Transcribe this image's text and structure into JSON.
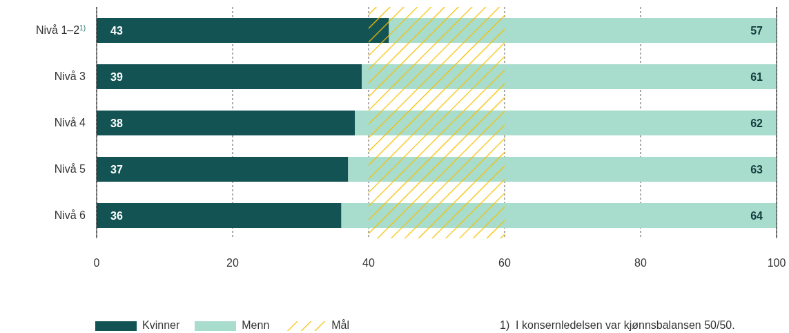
{
  "chart_data": {
    "type": "bar",
    "orientation": "horizontal",
    "stacked": true,
    "categories": [
      "Nivå 1–2$^{1)}$",
      "Nivå 3",
      "Nivå 4",
      "Nivå 5",
      "Nivå 6"
    ],
    "series": [
      {
        "name": "Kvinner",
        "color": "#135354",
        "values": [
          43,
          39,
          38,
          37,
          36
        ]
      },
      {
        "name": "Menn",
        "color": "#a8dccd",
        "values": [
          57,
          61,
          62,
          63,
          64
        ]
      }
    ],
    "xlim": [
      0,
      100
    ],
    "xticks": [
      0,
      20,
      40,
      60,
      80,
      100
    ],
    "grid": "x",
    "data_labels": true,
    "legend": "bottom",
    "bands": [
      {
        "axis": "x",
        "from": 40,
        "to": 60,
        "label": "Mål",
        "color": "#f5c000"
      }
    ],
    "annotations": [
      "1)  I konsernledelsen var kjønnsbalansen 50/50."
    ]
  }
}
